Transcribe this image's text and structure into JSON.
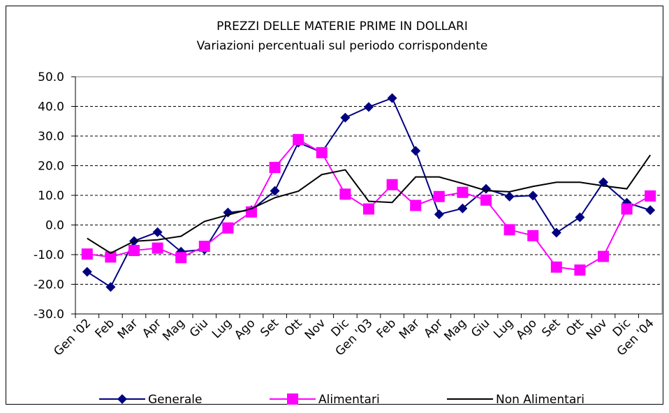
{
  "chart_data": {
    "type": "line",
    "title": "PREZZI DELLE MATERIE PRIME IN DOLLARI",
    "subtitle": "Variazioni percentuali sul periodo corrispondente",
    "categories": [
      "Gen '02",
      "Feb",
      "Mar",
      "Apr",
      "Mag",
      "Giu",
      "Lug",
      "Ago",
      "Set",
      "Ott",
      "Nov",
      "Dic",
      "Gen '03",
      "Feb",
      "Mar",
      "Apr",
      "Mag",
      "Giu",
      "Lug",
      "Ago",
      "Set",
      "Ott",
      "Nov",
      "Dic",
      "Gen '04"
    ],
    "series": [
      {
        "name": "Generale",
        "color": "#000080",
        "marker": "diamond",
        "values": [
          -15.8,
          -20.9,
          -5.4,
          -2.4,
          -9,
          -8.3,
          4.2,
          5,
          11.5,
          27.8,
          24.5,
          36.2,
          39.8,
          42.8,
          25,
          3.6,
          5.6,
          12.2,
          9.6,
          9.9,
          -2.6,
          2.6,
          14.4,
          7.5,
          5
        ]
      },
      {
        "name": "Alimentari",
        "color": "#ff00ff",
        "marker": "square",
        "values": [
          -9.8,
          -10.8,
          -8.6,
          -7.8,
          -11,
          -7.2,
          -1,
          4.4,
          19.4,
          28.8,
          24.4,
          10.4,
          5.4,
          13.6,
          6.6,
          9.6,
          11,
          8.4,
          -1.6,
          -3.6,
          -14.2,
          -15.2,
          -10.6,
          5.4,
          9.8
        ]
      },
      {
        "name": "Non Alimentari",
        "color": "#000000",
        "marker": "none",
        "values": [
          -4.5,
          -9.5,
          -5.5,
          -5,
          -3.8,
          1.2,
          3.4,
          5.5,
          9.2,
          11.4,
          17,
          18.6,
          8,
          7.6,
          16.2,
          16.2,
          14,
          11.6,
          11.2,
          13,
          14.4,
          14.4,
          13.2,
          12.2,
          23.6
        ]
      }
    ],
    "ylim": [
      -30,
      50
    ],
    "yticks": [
      {
        "value": -30,
        "label": "-30.0"
      },
      {
        "value": -20,
        "label": "-20.0"
      },
      {
        "value": -10,
        "label": "-10.0"
      },
      {
        "value": 0,
        "label": "0.0"
      },
      {
        "value": 10,
        "label": "10.0"
      },
      {
        "value": 20,
        "label": "20.0"
      },
      {
        "value": 30,
        "label": "30.0"
      },
      {
        "value": 40,
        "label": "40.0"
      },
      {
        "value": 50,
        "label": "50.0"
      }
    ],
    "grid": true,
    "legend": "bottom"
  }
}
